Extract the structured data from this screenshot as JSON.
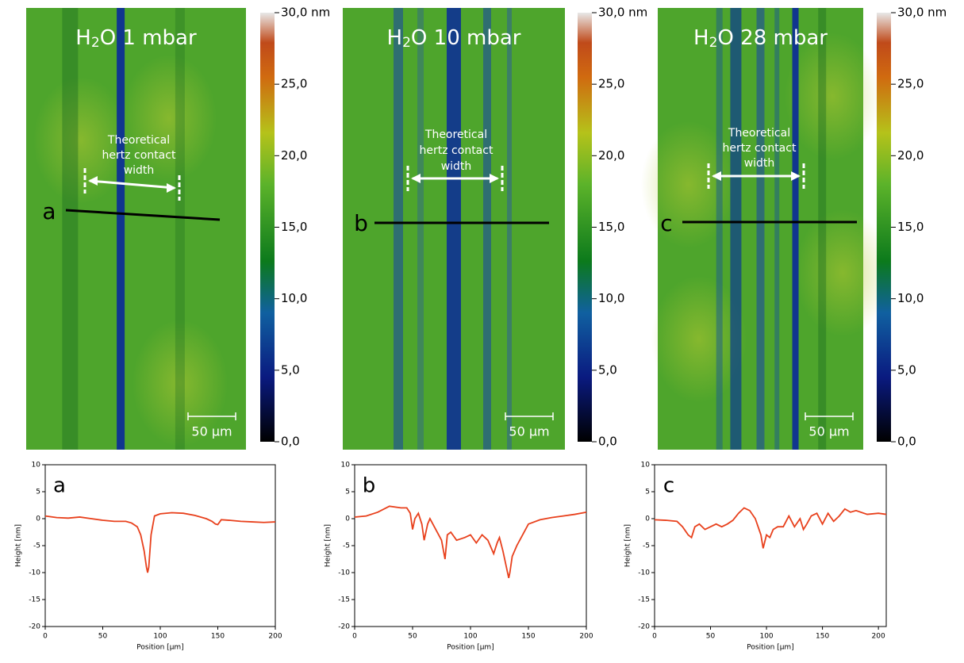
{
  "images": [
    {
      "title": {
        "main": "H",
        "sub": "2",
        "rest": "O 1 mbar"
      },
      "annotation": [
        "Theoretical",
        "hertz contact",
        "width"
      ],
      "line_label": "a",
      "scale_bar": "50 μm"
    },
    {
      "title": {
        "main": "H",
        "sub": "2",
        "rest": "O 10 mbar"
      },
      "annotation": [
        "Theoretical",
        "hertz contact",
        "width"
      ],
      "line_label": "b",
      "scale_bar": "50 μm"
    },
    {
      "title": {
        "main": "H",
        "sub": "2",
        "rest": "O 28 mbar"
      },
      "annotation": [
        "Theoretical",
        "hertz contact",
        "width"
      ],
      "line_label": "c",
      "scale_bar": "50 μm"
    }
  ],
  "colorbar": {
    "lim": [
      0,
      30
    ],
    "ticks": [
      {
        "value": 0,
        "label": "0,0"
      },
      {
        "value": 5,
        "label": "5,0"
      },
      {
        "value": 10,
        "label": "10,0"
      },
      {
        "value": 15,
        "label": "15,0"
      },
      {
        "value": 20,
        "label": "20,0"
      },
      {
        "value": 25,
        "label": "25,0"
      },
      {
        "value": 30,
        "label": "30,0 nm"
      }
    ]
  },
  "chart_data": [
    {
      "type": "line",
      "annotation": "a",
      "x_label": "Position [μm]",
      "y_label": "Height [nm]",
      "x": [
        0,
        10,
        20,
        30,
        40,
        50,
        60,
        70,
        75,
        80,
        83,
        86,
        88,
        89,
        90,
        92,
        95,
        100,
        110,
        120,
        130,
        140,
        145,
        148,
        150,
        153,
        160,
        170,
        180,
        190,
        200
      ],
      "series": [
        {
          "color": "#e8401c",
          "values": [
            0.5,
            0.2,
            0.1,
            0.3,
            0,
            -0.3,
            -0.5,
            -0.5,
            -0.8,
            -1.5,
            -3,
            -6,
            -9,
            -10,
            -9,
            -3,
            0.5,
            0.9,
            1.1,
            1,
            0.6,
            0,
            -0.5,
            -1,
            -1.1,
            -0.2,
            -0.3,
            -0.5,
            -0.6,
            -0.7,
            -0.6
          ]
        }
      ],
      "xlim": [
        0,
        200
      ],
      "xticks": [
        0,
        50,
        100,
        150,
        200
      ],
      "ylim": [
        -20,
        10
      ],
      "yticks": [
        -20,
        -15,
        -10,
        -5,
        0,
        5,
        10
      ]
    },
    {
      "type": "line",
      "annotation": "b",
      "x_label": "Position [μm]",
      "y_label": "Height [nm]",
      "x": [
        0,
        10,
        20,
        30,
        40,
        45,
        48,
        50,
        52,
        55,
        58,
        60,
        63,
        65,
        70,
        75,
        78,
        80,
        83,
        88,
        95,
        100,
        105,
        110,
        115,
        120,
        123,
        125,
        128,
        130,
        133,
        134,
        136,
        140,
        145,
        150,
        160,
        170,
        180,
        190,
        200
      ],
      "series": [
        {
          "color": "#e8401c",
          "values": [
            0.3,
            0.5,
            1.2,
            2.3,
            2,
            2,
            1,
            -2,
            0,
            1,
            -1,
            -4,
            -1,
            0,
            -2,
            -4,
            -7.5,
            -3,
            -2.5,
            -4,
            -3.5,
            -3,
            -4.5,
            -3,
            -4,
            -6.5,
            -4.5,
            -3.5,
            -6,
            -8,
            -11,
            -10,
            -7,
            -5,
            -3,
            -1,
            -0.2,
            0.2,
            0.5,
            0.8,
            1.2
          ]
        }
      ],
      "xlim": [
        0,
        200
      ],
      "xticks": [
        0,
        50,
        100,
        150,
        200
      ],
      "ylim": [
        -20,
        10
      ],
      "yticks": [
        -20,
        -15,
        -10,
        -5,
        0,
        5,
        10
      ]
    },
    {
      "type": "line",
      "annotation": "c",
      "x_label": "Position [μm]",
      "y_label": "Height [nm]",
      "x": [
        0,
        10,
        20,
        25,
        30,
        33,
        36,
        40,
        45,
        50,
        55,
        60,
        65,
        70,
        75,
        80,
        85,
        90,
        95,
        97,
        100,
        103,
        106,
        110,
        115,
        120,
        125,
        130,
        133,
        136,
        140,
        145,
        150,
        155,
        160,
        165,
        170,
        175,
        180,
        190,
        200,
        207
      ],
      "series": [
        {
          "color": "#e8401c",
          "values": [
            -0.2,
            -0.3,
            -0.5,
            -1.5,
            -3,
            -3.5,
            -1.5,
            -1,
            -2,
            -1.5,
            -1,
            -1.5,
            -1,
            -0.3,
            1,
            2,
            1.5,
            0,
            -3,
            -5.5,
            -3,
            -3.5,
            -2,
            -1.5,
            -1.5,
            0.5,
            -1.5,
            0,
            -2,
            -1,
            0.5,
            1,
            -1,
            1,
            -0.5,
            0.5,
            1.8,
            1.2,
            1.5,
            0.8,
            1,
            0.8
          ]
        }
      ],
      "xlim": [
        0,
        207
      ],
      "xticks": [
        0,
        50,
        100,
        150,
        200
      ],
      "ylim": [
        -20,
        10
      ],
      "yticks": [
        -20,
        -15,
        -10,
        -5,
        0,
        5,
        10
      ]
    }
  ]
}
